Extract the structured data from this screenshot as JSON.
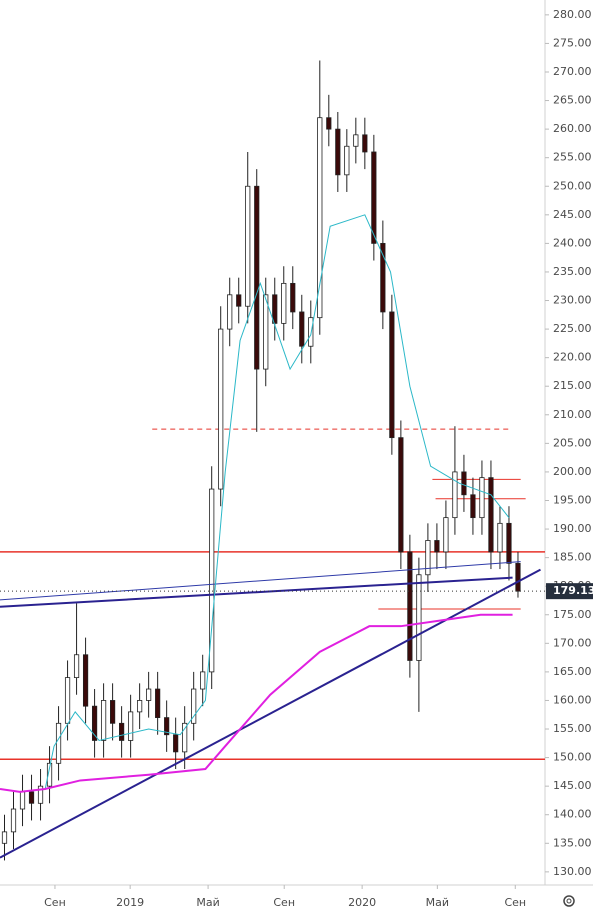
{
  "chart_data": {
    "type": "candlestick",
    "x": [
      1,
      3,
      5,
      7,
      9,
      11,
      13,
      15,
      17,
      19,
      21,
      23,
      25,
      27,
      29,
      31,
      33,
      35,
      37,
      39,
      41,
      43,
      45,
      47,
      49,
      51,
      53,
      55,
      57,
      59,
      61,
      63,
      65,
      67,
      69,
      71,
      73,
      75,
      77,
      79,
      81,
      83,
      85,
      87,
      89,
      91,
      93,
      95,
      97,
      99,
      101,
      103,
      105,
      107,
      109,
      111,
      113,
      115
    ],
    "open": [
      135,
      137,
      141,
      144,
      142,
      145,
      149,
      156,
      164,
      168,
      159,
      153,
      160,
      156,
      153,
      158,
      160,
      162,
      157,
      154,
      151,
      156,
      162,
      165,
      197,
      225,
      231,
      229,
      250,
      218,
      231,
      226,
      233,
      228,
      222,
      227,
      262,
      260,
      252,
      257,
      259,
      256,
      240,
      228,
      206,
      186,
      167,
      182,
      188,
      186,
      192,
      200,
      196,
      192,
      199,
      186,
      191,
      184
    ],
    "high": [
      140,
      144,
      147,
      147,
      148,
      152,
      159,
      167,
      177,
      171,
      162,
      163,
      163,
      159,
      161,
      163,
      165,
      165,
      160,
      157,
      159,
      165,
      168,
      201,
      229,
      234,
      234,
      256,
      253,
      234,
      234,
      236,
      236,
      231,
      230,
      272,
      266,
      263,
      260,
      262,
      262,
      259,
      244,
      231,
      209,
      189,
      185,
      191,
      191,
      195,
      208,
      203,
      199,
      202,
      202,
      194,
      194,
      186
    ],
    "low": [
      132,
      134,
      138,
      139,
      139,
      142,
      146,
      153,
      161,
      156,
      150,
      150,
      153,
      150,
      150,
      155,
      157,
      154,
      151,
      148,
      148,
      153,
      159,
      162,
      194,
      222,
      226,
      226,
      207,
      215,
      223,
      223,
      225,
      219,
      219,
      224,
      257,
      249,
      249,
      254,
      253,
      237,
      225,
      203,
      183,
      164,
      158,
      179,
      183,
      183,
      189,
      193,
      189,
      189,
      183,
      183,
      181,
      178
    ],
    "close": [
      137,
      141,
      144,
      142,
      145,
      149,
      156,
      164,
      168,
      159,
      153,
      160,
      156,
      153,
      158,
      160,
      162,
      157,
      154,
      151,
      156,
      162,
      165,
      197,
      225,
      231,
      229,
      250,
      218,
      231,
      226,
      233,
      228,
      222,
      227,
      262,
      260,
      252,
      257,
      259,
      256,
      240,
      228,
      206,
      186,
      167,
      182,
      188,
      186,
      192,
      200,
      196,
      192,
      199,
      186,
      191,
      184,
      179.13
    ],
    "up_color": "#ffffff",
    "down_color": "#3b0a0a",
    "xlim": [
      0,
      121
    ],
    "ylim": [
      127.7,
      282.6
    ],
    "xticks": [
      {
        "value": 12.2,
        "label": "Сен"
      },
      {
        "value": 28.9,
        "label": "2019"
      },
      {
        "value": 46.2,
        "label": "Май"
      },
      {
        "value": 63.1,
        "label": "Сен"
      },
      {
        "value": 80.4,
        "label": "2020"
      },
      {
        "value": 97.1,
        "label": "Май"
      },
      {
        "value": 114.4,
        "label": "Сен"
      }
    ],
    "yticks": [
      {
        "value": 130,
        "label": "130.00"
      },
      {
        "value": 135,
        "label": "135.00"
      },
      {
        "value": 140,
        "label": "140.00"
      },
      {
        "value": 145,
        "label": "145.00"
      },
      {
        "value": 150,
        "label": "150.00"
      },
      {
        "value": 155,
        "label": "155.00"
      },
      {
        "value": 160,
        "label": "160.00"
      },
      {
        "value": 165,
        "label": "165.00"
      },
      {
        "value": 170,
        "label": "170.00"
      },
      {
        "value": 175,
        "label": "175.00"
      },
      {
        "value": 180,
        "label": "180.00"
      },
      {
        "value": 185,
        "label": "185.00"
      },
      {
        "value": 190,
        "label": "190.00"
      },
      {
        "value": 195,
        "label": "195.00"
      },
      {
        "value": 200,
        "label": "200.00"
      },
      {
        "value": 205,
        "label": "205.00"
      },
      {
        "value": 210,
        "label": "210.00"
      },
      {
        "value": 215,
        "label": "215.00"
      },
      {
        "value": 220,
        "label": "220.00"
      },
      {
        "value": 225,
        "label": "225.00"
      },
      {
        "value": 230,
        "label": "230.00"
      },
      {
        "value": 235,
        "label": "235.00"
      },
      {
        "value": 240,
        "label": "240.00"
      },
      {
        "value": 245,
        "label": "245.00"
      },
      {
        "value": 250,
        "label": "250.00"
      },
      {
        "value": 255,
        "label": "255.00"
      },
      {
        "value": 260,
        "label": "260.00"
      },
      {
        "value": 265,
        "label": "265.00"
      },
      {
        "value": 270,
        "label": "270.00"
      },
      {
        "value": 275,
        "label": "275.00"
      },
      {
        "value": 280,
        "label": "280.00"
      }
    ],
    "lines": [
      {
        "color": "#e8332a",
        "width": 1.5,
        "dash": false,
        "x": [
          0,
          121
        ],
        "y": [
          186,
          186
        ]
      },
      {
        "color": "#e8332a",
        "width": 1.5,
        "dash": false,
        "x": [
          0,
          121
        ],
        "y": [
          149.7,
          149.7
        ]
      },
      {
        "color": "#e8332a",
        "width": 1,
        "dash": true,
        "x": [
          33.8,
          112.9
        ],
        "y": [
          207.5,
          207.5
        ]
      },
      {
        "color": "#e8332a",
        "width": 1,
        "dash": false,
        "x": [
          96,
          115.6
        ],
        "y": [
          198.7,
          198.7
        ]
      },
      {
        "color": "#e8332a",
        "width": 1,
        "dash": false,
        "x": [
          96.7,
          116.7
        ],
        "y": [
          195.3,
          195.3
        ]
      },
      {
        "color": "#e8332a",
        "width": 1,
        "dash": false,
        "x": [
          84,
          115.6
        ],
        "y": [
          176,
          176
        ]
      },
      {
        "color": "#2e3aa8",
        "width": 1,
        "dash": false,
        "x": [
          0,
          115.6
        ],
        "y": [
          177.6,
          184.3
        ]
      },
      {
        "color": "#2a2290",
        "width": 2,
        "dash": false,
        "x": [
          0,
          113.8
        ],
        "y": [
          176.4,
          181.5
        ]
      },
      {
        "color": "#2a2290",
        "width": 2,
        "dash": false,
        "x": [
          0,
          120
        ],
        "y": [
          132.5,
          182.9
        ]
      },
      {
        "color": "#2bb8c8",
        "width": 1,
        "dash": false,
        "x": [
          10,
          12,
          16.7,
          22,
          33,
          40,
          45.6,
          50,
          53.3,
          57.8,
          64.4,
          69,
          73.3,
          81,
          86.7,
          91,
          95.6,
          102,
          109,
          113
        ],
        "y": [
          144.4,
          152,
          158,
          153,
          155,
          154,
          160,
          200,
          223,
          233,
          218,
          224,
          243,
          245,
          235,
          215,
          201,
          198,
          196,
          192
        ]
      },
      {
        "color": "#e020e0",
        "width": 2,
        "dash": false,
        "x": [
          0,
          4.4,
          10,
          17.8,
          33,
          45.6,
          50,
          60,
          71,
          82,
          89,
          97.8,
          106.7,
          113.8
        ],
        "y": [
          144.5,
          144,
          144.5,
          146,
          147,
          148,
          152,
          161,
          168.5,
          173,
          173,
          174,
          175,
          175
        ]
      }
    ]
  }
}
